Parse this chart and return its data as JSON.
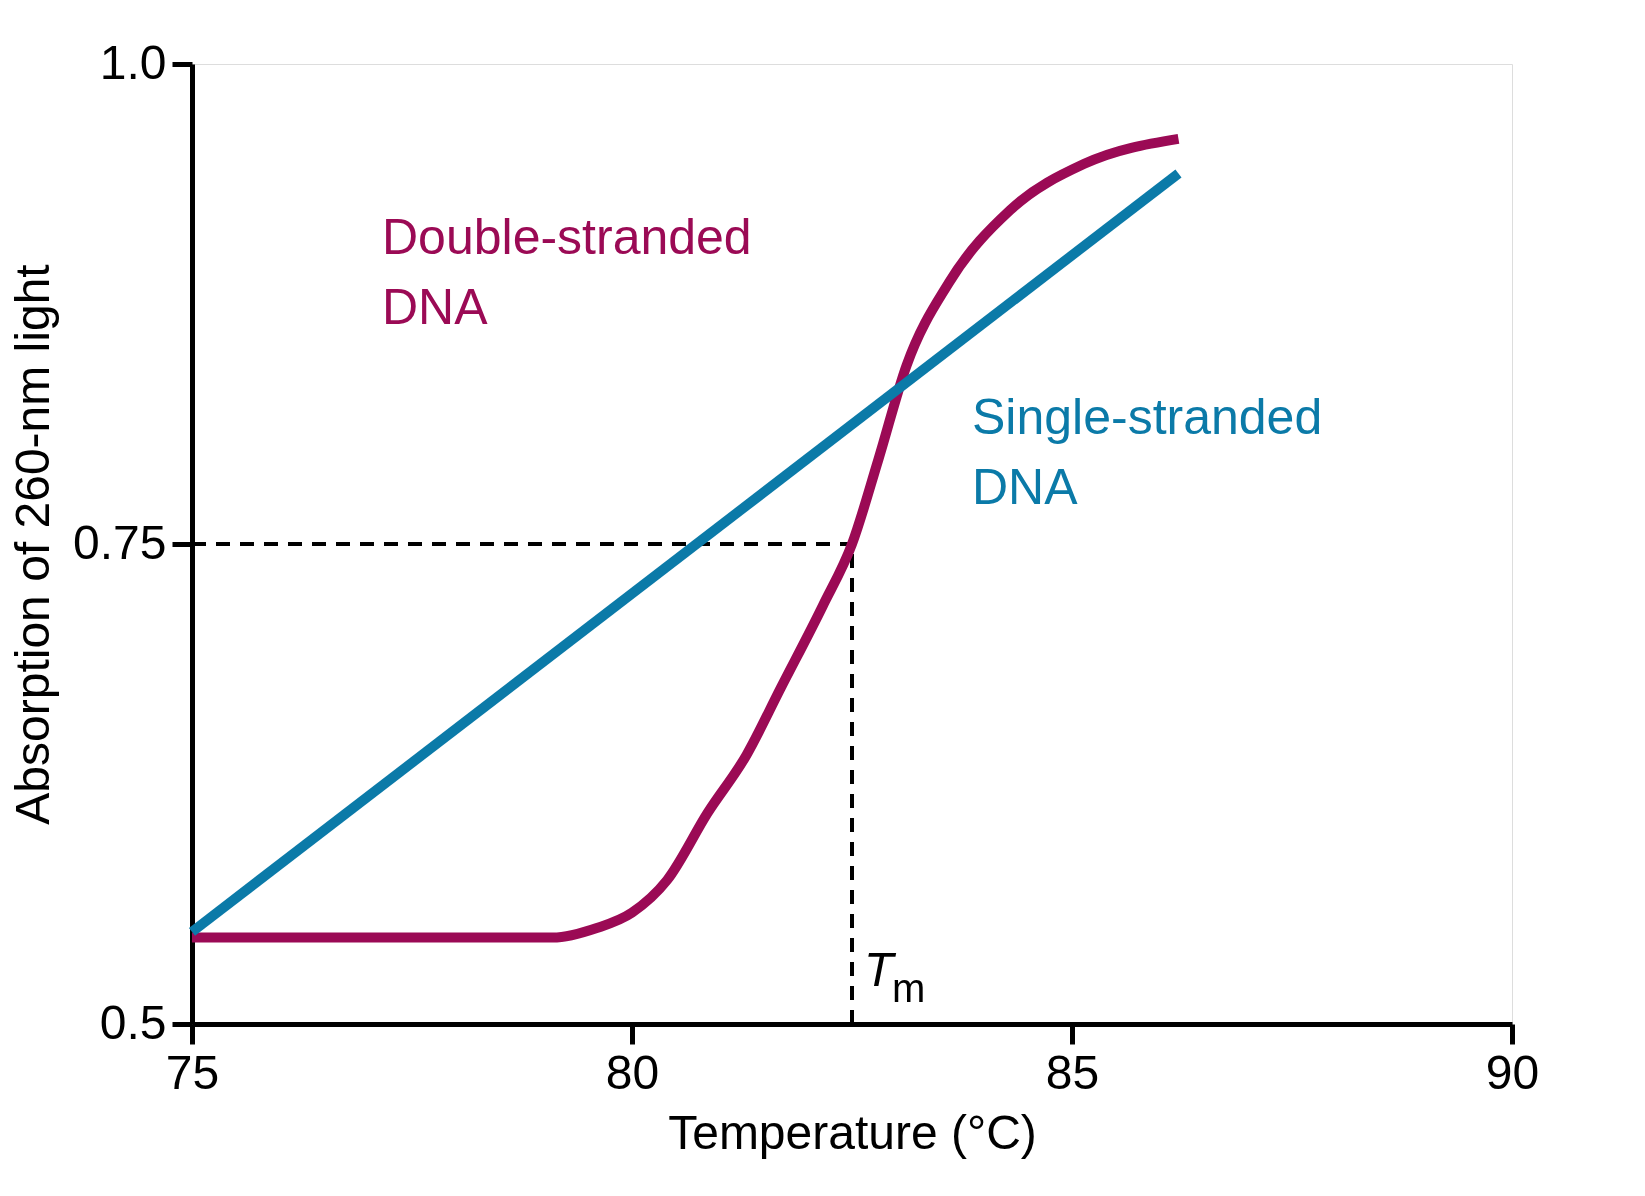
{
  "chart_data": {
    "type": "line",
    "xlabel": "Temperature (°C)",
    "ylabel": "Absorption of 260-nm light",
    "xlim": [
      75,
      90
    ],
    "ylim": [
      0.5,
      1.0
    ],
    "xticks": [
      75,
      80,
      85,
      90
    ],
    "yticks": [
      0.5,
      0.75,
      {
        "value": 1.0,
        "label": "1.0"
      }
    ],
    "grid": false,
    "marker": "none",
    "line_style": "solid",
    "series": [
      {
        "name": "Double-stranded DNA",
        "color": "#9b0a55",
        "x": [
          75,
          76,
          77,
          78,
          79.1,
          79.6,
          80,
          80.4,
          80.86,
          81.3,
          81.69,
          82.17,
          82.5,
          82.8,
          83.12,
          83.6,
          84.3,
          85.14,
          86.21
        ],
        "values": [
          0.545,
          0.545,
          0.545,
          0.545,
          0.545,
          0.55,
          0.558,
          0.575,
          0.61,
          0.64,
          0.675,
          0.718,
          0.75,
          0.794,
          0.843,
          0.886,
          0.924,
          0.948,
          0.961
        ]
      },
      {
        "name": "Single-stranded DNA",
        "color": "#0b7aa8",
        "x": [
          75,
          86.21
        ],
        "values": [
          0.548,
          0.943
        ]
      }
    ],
    "ref_lines": [
      {
        "axis": "y",
        "value": 0.75,
        "label": null,
        "color": "#000000",
        "line_style": "dashed"
      },
      {
        "axis": "x",
        "value": 82.5,
        "label": "T$_{m}$",
        "color": "#000000",
        "line_style": "dashed"
      }
    ]
  }
}
